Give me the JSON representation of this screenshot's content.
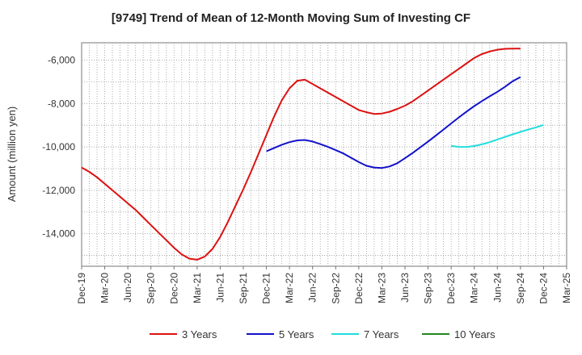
{
  "chart_data": {
    "type": "line",
    "title": "[9749]  Trend of Mean of 12-Month Moving Sum of Investing CF",
    "ylabel": "Amount (million yen)",
    "xlabel": "",
    "ylim": [
      -15500,
      -5200
    ],
    "yticks": [
      -6000,
      -8000,
      -10000,
      -12000,
      -14000
    ],
    "ytick_labels": [
      "-6,000",
      "-8,000",
      "-10,000",
      "-12,000",
      "-14,000"
    ],
    "xtick_labels": [
      "Dec-19",
      "Mar-20",
      "Jun-20",
      "Sep-20",
      "Dec-20",
      "Mar-21",
      "Jun-21",
      "Sep-21",
      "Dec-21",
      "Mar-22",
      "Jun-22",
      "Sep-22",
      "Dec-22",
      "Mar-23",
      "Jun-23",
      "Sep-23",
      "Dec-23",
      "Mar-24",
      "Jun-24",
      "Sep-24",
      "Dec-24",
      "Mar-25"
    ],
    "x_start": "Dec-19",
    "x_end": "Mar-25",
    "grid": true,
    "legend_position": "bottom",
    "series": [
      {
        "name": "3 Years",
        "color": "#dd1111",
        "start": "Dec-19",
        "values": [
          -10950,
          -11150,
          -11400,
          -11700,
          -12000,
          -12300,
          -12600,
          -12900,
          -13250,
          -13600,
          -13950,
          -14300,
          -14650,
          -14950,
          -15150,
          -15200,
          -15050,
          -14700,
          -14150,
          -13450,
          -12700,
          -11950,
          -11150,
          -10300,
          -9450,
          -8600,
          -7850,
          -7300,
          -6950,
          -6900,
          -7100,
          -7300,
          -7500,
          -7700,
          -7900,
          -8100,
          -8300,
          -8400,
          -8480,
          -8460,
          -8380,
          -8250,
          -8100,
          -7900,
          -7650,
          -7400,
          -7150,
          -6900,
          -6650,
          -6400,
          -6150,
          -5900,
          -5720,
          -5600,
          -5520,
          -5480,
          -5470,
          -5470
        ]
      },
      {
        "name": "5 Years",
        "color": "#1111cc",
        "start": "Dec-21",
        "values": [
          -10200,
          -10050,
          -9900,
          -9780,
          -9700,
          -9680,
          -9750,
          -9870,
          -10000,
          -10150,
          -10300,
          -10500,
          -10700,
          -10870,
          -10950,
          -10970,
          -10900,
          -10750,
          -10520,
          -10280,
          -10020,
          -9750,
          -9480,
          -9200,
          -8920,
          -8640,
          -8370,
          -8120,
          -7890,
          -7670,
          -7460,
          -7230,
          -6970,
          -6780
        ]
      },
      {
        "name": "7 Years",
        "color": "#22dddd",
        "start": "Dec-23",
        "values": [
          -9950,
          -10000,
          -10000,
          -9960,
          -9880,
          -9780,
          -9660,
          -9540,
          -9420,
          -9310,
          -9200,
          -9100,
          -8990
        ]
      },
      {
        "name": "10 Years",
        "color": "#228822",
        "start": "Dec-24",
        "values": []
      }
    ]
  }
}
